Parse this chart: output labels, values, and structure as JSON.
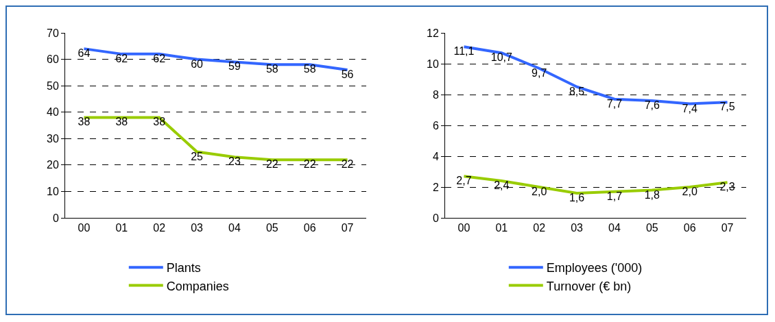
{
  "chart_data": [
    {
      "type": "line",
      "categories": [
        "00",
        "01",
        "02",
        "03",
        "04",
        "05",
        "06",
        "07"
      ],
      "ylim": [
        0,
        70
      ],
      "yticks": [
        0,
        10,
        20,
        30,
        40,
        50,
        60,
        70
      ],
      "grid": "y",
      "legend": "bottom",
      "data_labels": true,
      "series": [
        {
          "name": "Plants",
          "color": "#3366ff",
          "values": [
            64,
            62,
            62,
            60,
            59,
            58,
            58,
            56
          ]
        },
        {
          "name": "Companies",
          "color": "#99cc00",
          "values": [
            38,
            38,
            38,
            25,
            23,
            22,
            22,
            22
          ]
        }
      ]
    },
    {
      "type": "line",
      "categories": [
        "00",
        "01",
        "02",
        "03",
        "04",
        "05",
        "06",
        "07"
      ],
      "ylim": [
        0,
        12
      ],
      "yticks": [
        0,
        2,
        4,
        6,
        8,
        10,
        12
      ],
      "grid": "y",
      "legend": "bottom",
      "series": [
        {
          "name": "Employees ('000)",
          "color": "#3366ff",
          "values": [
            11.1,
            10.7,
            9.7,
            8.5,
            7.7,
            7.6,
            7.4,
            7.5
          ],
          "value_labels": [
            "11,1",
            "10,7",
            "9,7",
            "8,5",
            "7,7",
            "7,6",
            "7,4",
            "7,5"
          ]
        },
        {
          "name": "Turnover (€ bn)",
          "color": "#99cc00",
          "values": [
            2.7,
            2.4,
            2.0,
            1.6,
            1.7,
            1.8,
            2.0,
            2.3
          ],
          "value_labels": [
            "2,7",
            "2,4",
            "2,0",
            "1,6",
            "1,7",
            "1,8",
            "2,0",
            "2,3"
          ]
        }
      ]
    }
  ]
}
